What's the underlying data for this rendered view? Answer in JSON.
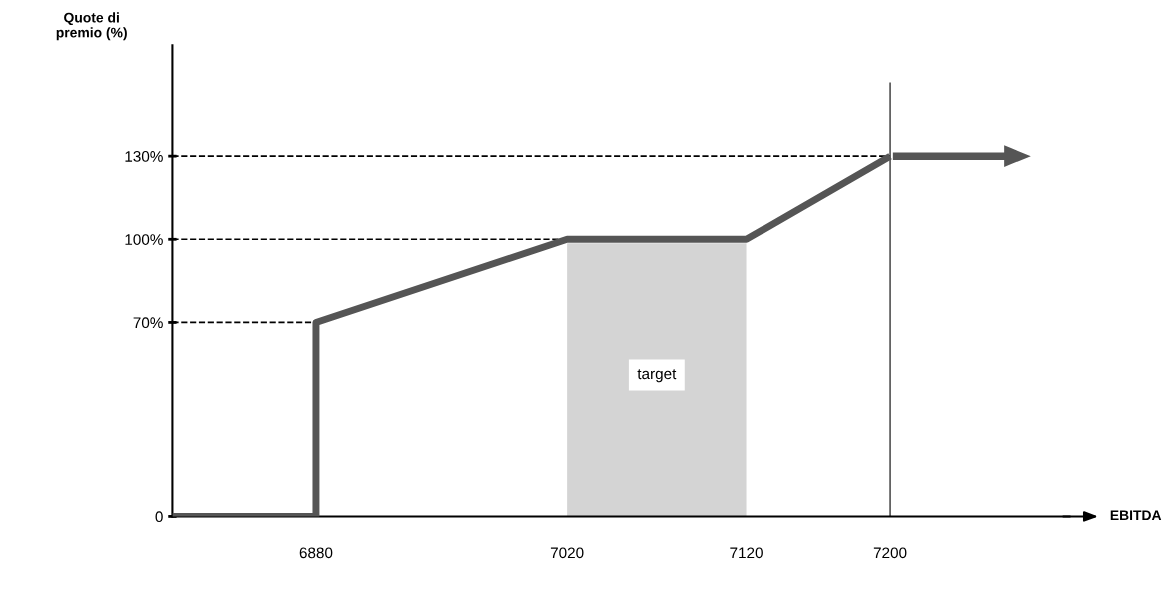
{
  "chart_data": {
    "type": "line",
    "ylabel": "Quote di\npremio (%)",
    "xlabel": "EBITDA",
    "x": [
      6800,
      6880,
      6880,
      7020,
      7120,
      7200
    ],
    "series": [
      {
        "color": "#555555",
        "values": [
          0,
          0,
          70,
          100,
          100,
          130
        ]
      }
    ],
    "xlim": [
      6800,
      7300
    ],
    "ylim": [
      0,
      170
    ],
    "xticks": [
      6880,
      7020,
      7120,
      7200
    ],
    "yticks": [
      0,
      {
        "value": 70,
        "label": "70%"
      },
      {
        "value": 100,
        "label": "100%"
      },
      {
        "value": 130,
        "label": "130%"
      }
    ],
    "ref_lines": [
      {
        "axis": "y",
        "value": 70,
        "line_style": "dashed",
        "color": "#000000"
      },
      {
        "axis": "y",
        "value": 100,
        "line_style": "dashed",
        "color": "#000000"
      },
      {
        "axis": "y",
        "value": 130,
        "line_style": "dashed",
        "color": "#000000"
      },
      {
        "axis": "x",
        "value": 7200,
        "line_style": "solid",
        "color": "#000000"
      }
    ],
    "bands": [
      {
        "axis": "x",
        "from": 7020,
        "to": 7120,
        "label": "target",
        "color": "#d4d4d4"
      }
    ],
    "grid": false,
    "marker": "none",
    "line_style": "solid"
  }
}
